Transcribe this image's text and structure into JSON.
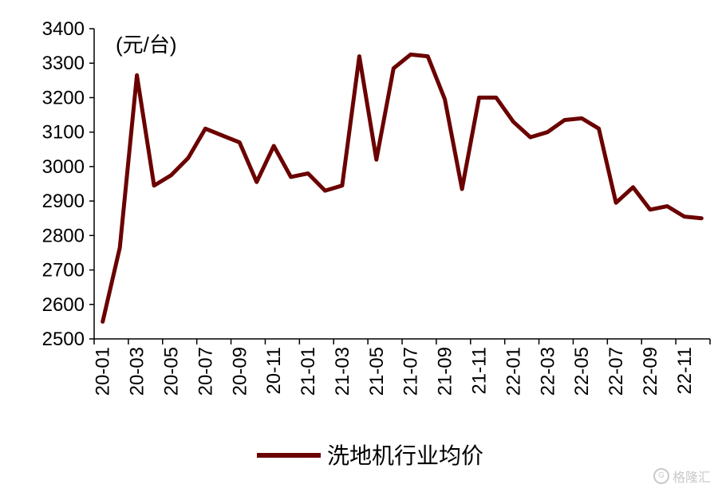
{
  "chart_data": {
    "type": "line",
    "unit_label": "(元/台)",
    "ylim": [
      2500,
      3400
    ],
    "yticks": [
      2500,
      2600,
      2700,
      2800,
      2900,
      3000,
      3100,
      3200,
      3300,
      3400
    ],
    "xtick_labels": [
      "20-01",
      "20-03",
      "20-05",
      "20-07",
      "20-09",
      "20-11",
      "21-01",
      "21-03",
      "21-05",
      "21-07",
      "21-09",
      "21-11",
      "22-01",
      "22-03",
      "22-05",
      "22-07",
      "22-09",
      "22-11"
    ],
    "x": [
      "20-01",
      "20-02",
      "20-03",
      "20-04",
      "20-05",
      "20-06",
      "20-07",
      "20-08",
      "20-09",
      "20-10",
      "20-11",
      "20-12",
      "21-01",
      "21-02",
      "21-03",
      "21-04",
      "21-05",
      "21-06",
      "21-07",
      "21-08",
      "21-09",
      "21-10",
      "21-11",
      "21-12",
      "22-01",
      "22-02",
      "22-03",
      "22-04",
      "22-05",
      "22-06",
      "22-07",
      "22-08",
      "22-09",
      "22-10",
      "22-11",
      "22-12"
    ],
    "series": [
      {
        "name": "洗地机行业均价",
        "color": "#6b0000",
        "values": [
          2550,
          2765,
          3265,
          2945,
          2975,
          3025,
          3110,
          3090,
          3070,
          2955,
          3060,
          2970,
          2980,
          2930,
          2945,
          3320,
          3020,
          3285,
          3325,
          3320,
          3195,
          2935,
          3200,
          3200,
          3130,
          3085,
          3100,
          3135,
          3140,
          3110,
          2895,
          2940,
          2875,
          2885,
          2855,
          2850
        ]
      }
    ],
    "grid": false,
    "legend_position": "bottom"
  },
  "watermark": {
    "text": "格隆汇",
    "icon": "g-circle-icon",
    "color": "#c9c9c9"
  }
}
